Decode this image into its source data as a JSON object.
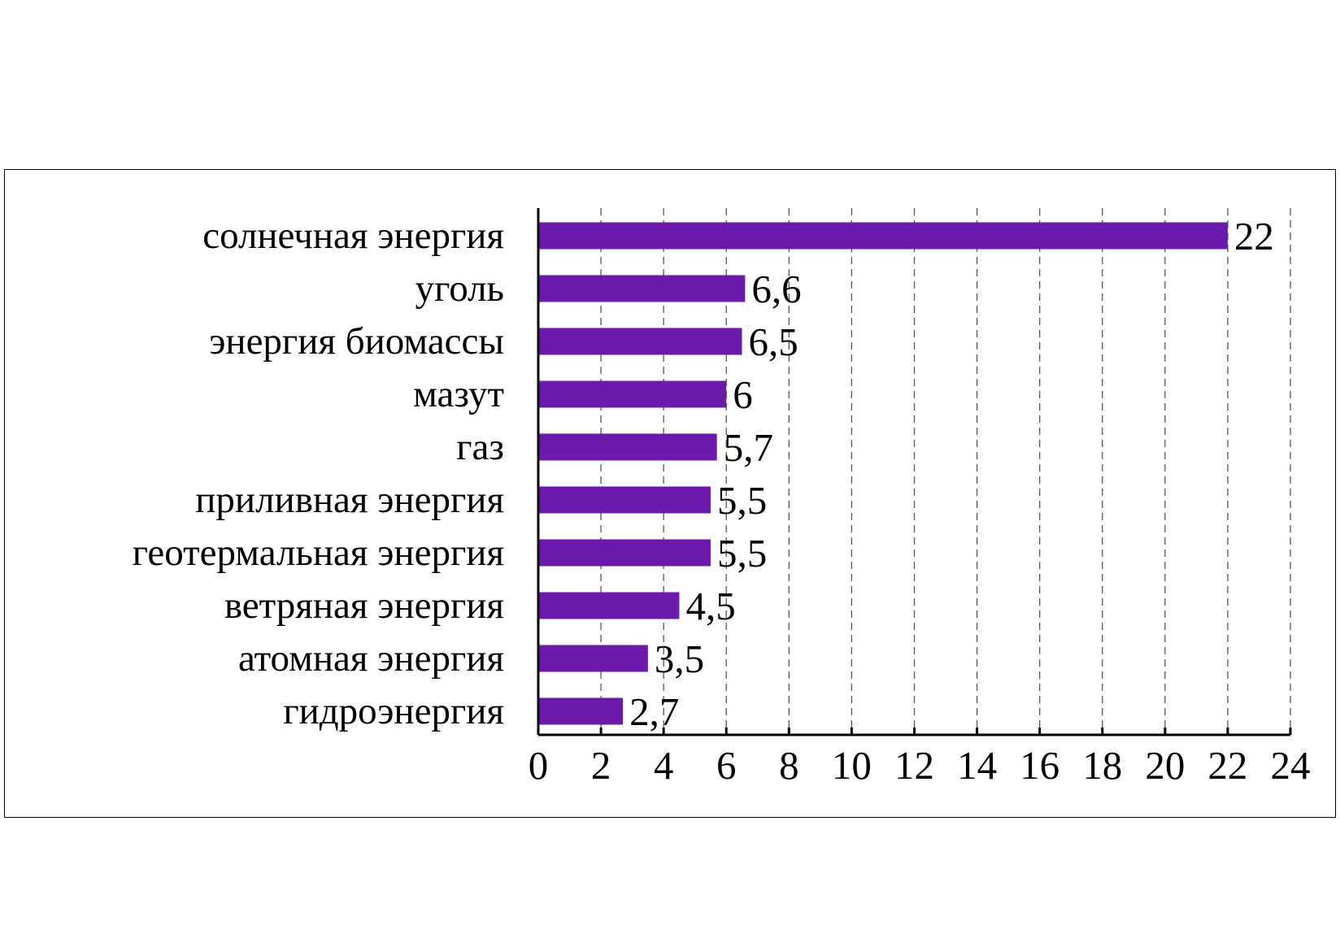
{
  "chart_data": {
    "type": "bar",
    "orientation": "horizontal",
    "categories": [
      "солнечная энергия",
      "уголь",
      "энергия биомассы",
      "мазут",
      "газ",
      "приливная энергия",
      "геотермальная энергия",
      "ветряная энергия",
      "атомная энергия",
      "гидроэнергия"
    ],
    "values": [
      22,
      6.6,
      6.5,
      6,
      5.7,
      5.5,
      5.5,
      4.5,
      3.5,
      2.7
    ],
    "value_labels": [
      "22",
      "6,6",
      "6,5",
      "6",
      "5,7",
      "5,5",
      "5,5",
      "4,5",
      "3,5",
      "2,7"
    ],
    "xlim": [
      0,
      24
    ],
    "xticks": [
      0,
      2,
      4,
      6,
      8,
      10,
      12,
      14,
      16,
      18,
      20,
      22,
      24
    ],
    "title": "",
    "xlabel": "",
    "ylabel": "",
    "grid": "vertical dashed",
    "legend": "none",
    "bar_color": "#6a1bab"
  }
}
